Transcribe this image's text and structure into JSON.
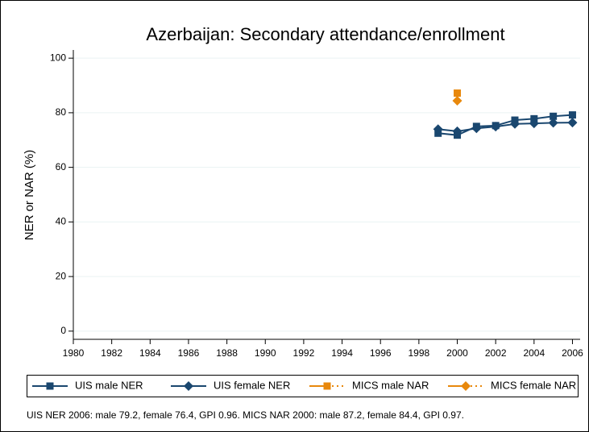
{
  "chart_data": {
    "type": "line",
    "title": "Azerbaijan: Secondary attendance/enrollment",
    "ylabel": "NER or NAR (%)",
    "note": "UIS NER 2006: male 79.2, female 76.4, GPI 0.96. MICS NAR 2000: male 87.2, female 84.4, GPI 0.97.",
    "xlim": [
      1980,
      2006.4
    ],
    "xticks": [
      1980,
      1982,
      1984,
      1986,
      1988,
      1990,
      1992,
      1994,
      1996,
      1998,
      2000,
      2002,
      2004,
      2006
    ],
    "ylim": [
      -3,
      103
    ],
    "yticks": [
      0,
      20,
      40,
      60,
      80,
      100
    ],
    "grid": true,
    "series": [
      {
        "name": "UIS male NER",
        "color": "#1a476f",
        "marker": "square",
        "line": "solid",
        "x": [
          1999,
          2000,
          2001,
          2002,
          2003,
          2004,
          2005,
          2006
        ],
        "values": [
          72.5,
          71.8,
          75.0,
          75.3,
          77.3,
          77.8,
          78.7,
          79.2
        ]
      },
      {
        "name": "UIS female NER",
        "color": "#1a476f",
        "marker": "diamond",
        "line": "solid",
        "x": [
          1999,
          2000,
          2001,
          2002,
          2003,
          2004,
          2005,
          2006
        ],
        "values": [
          74.0,
          73.2,
          74.3,
          74.9,
          75.9,
          76.1,
          76.3,
          76.4
        ]
      },
      {
        "name": "MICS male NAR",
        "color": "#e8880c",
        "marker": "square",
        "line": "dotted",
        "x": [
          2000
        ],
        "values": [
          87.2
        ]
      },
      {
        "name": "MICS female NAR",
        "color": "#e8880c",
        "marker": "diamond",
        "line": "dotted",
        "x": [
          2000
        ],
        "values": [
          84.4
        ]
      }
    ]
  }
}
